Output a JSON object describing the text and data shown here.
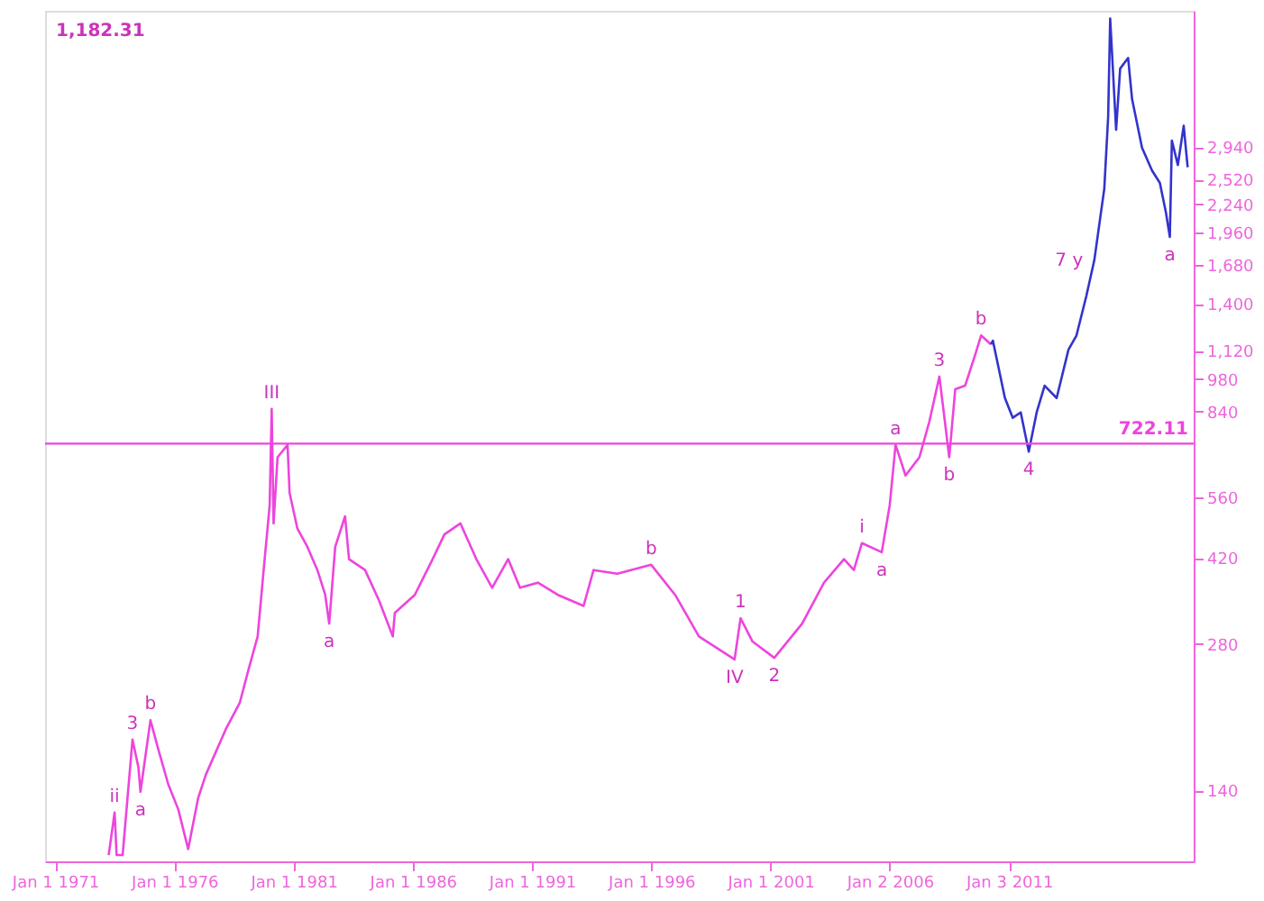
{
  "chart_data": {
    "type": "line",
    "log": "y",
    "grid": false,
    "marker": "none",
    "line_style": "solid",
    "xlim": [
      "1970-08",
      "2018-10"
    ],
    "xticks": [
      {
        "value": "1971-01-01",
        "label": "Jan 1 1971"
      },
      {
        "value": "1976-01-01",
        "label": "Jan 1 1976"
      },
      {
        "value": "1981-01-01",
        "label": "Jan 1 1981"
      },
      {
        "value": "1986-01-01",
        "label": "Jan 1 1986"
      },
      {
        "value": "1991-01-01",
        "label": "Jan 1 1991"
      },
      {
        "value": "1996-01-01",
        "label": "Jan 1 1996"
      },
      {
        "value": "2001-01-01",
        "label": "Jan 1 2001"
      },
      {
        "value": "2006-01-02",
        "label": "Jan 2 2006"
      },
      {
        "value": "2011-01-03",
        "label": "Jan 3 2011"
      }
    ],
    "ylim": [
      100,
      5600
    ],
    "yticks": [
      140,
      280,
      420,
      560,
      840,
      980,
      {
        "value": 1120,
        "label": "1,120"
      },
      {
        "value": 1400,
        "label": "1,400"
      },
      {
        "value": 1680,
        "label": "1,680"
      },
      {
        "value": 1960,
        "label": "1,960"
      },
      {
        "value": 2240,
        "label": "2,240"
      },
      {
        "value": 2520,
        "label": "2,520"
      },
      {
        "value": 2940,
        "label": "2,940"
      }
    ],
    "series": [
      {
        "color": "#ee44dd",
        "x": [
          "1973-04",
          "1973-07",
          "1973-08",
          "1973-11",
          "1974-04",
          "1974-07",
          "1974-08",
          "1975-01",
          "1975-05",
          "1975-10",
          "1976-03",
          "1976-08",
          "1977-01",
          "1977-05",
          "1978-03",
          "1978-10",
          "1979-02",
          "1979-07",
          "1979-10",
          "1980-01",
          "1980-02",
          "1980-03",
          "1980-05",
          "1980-10",
          "1980-11",
          "1981-03",
          "1981-08",
          "1982-01",
          "1982-05",
          "1982-07",
          "1982-10",
          "1983-03",
          "1983-05",
          "1984-01",
          "1984-08",
          "1985-03",
          "1985-04",
          "1986-02",
          "1986-11",
          "1987-05",
          "1988-01",
          "1988-09",
          "1989-05",
          "1990-01",
          "1990-07",
          "1991-04",
          "1992-02",
          "1993-03",
          "1993-08",
          "1994-08",
          "1996-01",
          "1997-01",
          "1998-01",
          "1999-07",
          "1999-10",
          "2000-04",
          "2001-03",
          "2002-05",
          "2003-04",
          "2004-02",
          "2004-07",
          "2004-11",
          "2005-09",
          "2006-01",
          "2006-04",
          "2006-09",
          "2007-04",
          "2007-09",
          "2008-02",
          "2008-07",
          "2008-10",
          "2009-03",
          "2009-08",
          "2009-11",
          "2010-04"
        ],
        "values": [
          103,
          126,
          103,
          103,
          178,
          156,
          139,
          195,
          170,
          144,
          128,
          106,
          135,
          151,
          187,
          212,
          245,
          290,
          397,
          539,
          851,
          495,
          677,
          718,
          572,
          483,
          443,
          397,
          353,
          308,
          443,
          512,
          418,
          397,
          344,
          290,
          324,
          353,
          418,
          470,
          495,
          418,
          365,
          418,
          365,
          374,
          353,
          335,
          397,
          390,
          407,
          353,
          290,
          260,
          316,
          283,
          262,
          308,
          374,
          418,
          397,
          451,
          432,
          539,
          718,
          621,
          677,
          802,
          992,
          677,
          934,
          950,
          1098,
          1205,
          1155
        ]
      },
      {
        "color": "#3333cc",
        "x": [
          "2010-04",
          "2010-05",
          "2010-11",
          "2011-03",
          "2011-07",
          "2011-11",
          "2012-03",
          "2012-07",
          "2013-01",
          "2013-07",
          "2013-11",
          "2014-04",
          "2014-08",
          "2015-01",
          "2015-03",
          "2015-04",
          "2015-07",
          "2015-09",
          "2016-01",
          "2016-03",
          "2016-08",
          "2017-01",
          "2017-05",
          "2017-08",
          "2017-10",
          "2017-11",
          "2018-02",
          "2018-05",
          "2018-07"
        ],
        "values": [
          1155,
          1175,
          896,
          816,
          837,
          695,
          837,
          950,
          896,
          1126,
          1205,
          1452,
          1720,
          2414,
          3390,
          5400,
          3190,
          4260,
          4480,
          3690,
          2930,
          2630,
          2480,
          2160,
          1920,
          3030,
          2700,
          3250,
          2670
        ]
      }
    ],
    "ref_lines": [
      {
        "axis": "y",
        "value": 722.11,
        "label": "722.11",
        "color": "#ee44dd"
      }
    ],
    "annotations": [
      {
        "text": "ii",
        "x": "1973-07",
        "y": 126
      },
      {
        "text": "3",
        "x": "1974-04",
        "y": 178
      },
      {
        "text": "b",
        "x": "1975-01",
        "y": 195
      },
      {
        "text": "a",
        "x": "1974-08",
        "y": 139
      },
      {
        "text": "III",
        "x": "1980-02",
        "y": 851
      },
      {
        "text": "a",
        "x": "1982-07",
        "y": 308
      },
      {
        "text": "b",
        "x": "1996-01",
        "y": 407
      },
      {
        "text": "IV",
        "x": "1999-07",
        "y": 260
      },
      {
        "text": "1",
        "x": "1999-10",
        "y": 316
      },
      {
        "text": "2",
        "x": "2001-03",
        "y": 262
      },
      {
        "text": "i",
        "x": "2004-11",
        "y": 451
      },
      {
        "text": "a",
        "x": "2005-09",
        "y": 432
      },
      {
        "text": "a",
        "x": "2006-04",
        "y": 718
      },
      {
        "text": "3",
        "x": "2008-02",
        "y": 992
      },
      {
        "text": "b",
        "x": "2008-07",
        "y": 677
      },
      {
        "text": "b",
        "x": "2009-11",
        "y": 1205
      },
      {
        "text": "4",
        "x": "2011-11",
        "y": 695
      },
      {
        "text": "7 y",
        "x": "2014-08",
        "y": 1720
      },
      {
        "text": "a",
        "x": "2017-10",
        "y": 1920
      },
      "1,182.31"
    ]
  }
}
